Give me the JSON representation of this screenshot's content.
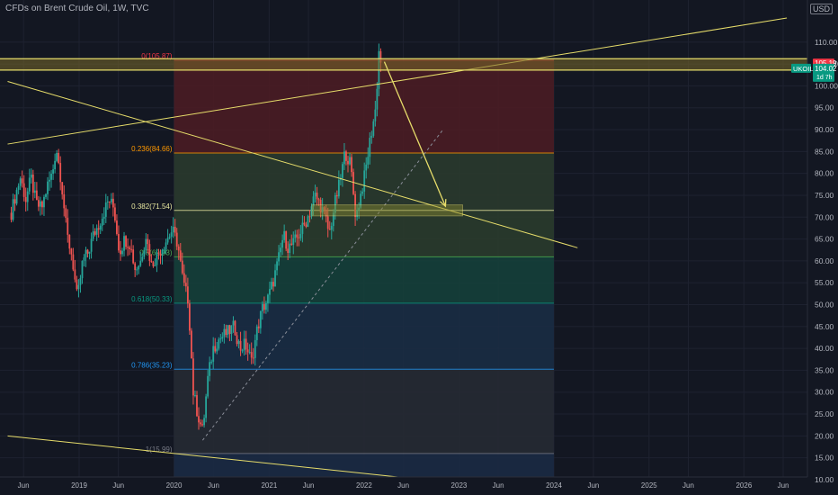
{
  "title": "CFDs on Brent Crude Oil, 1W, TVC",
  "currency": "USD",
  "chart_data": {
    "type": "candlestick",
    "symbol": "UKOIL",
    "interval": "1W",
    "source": "TVC",
    "ylim": [
      8,
      116
    ],
    "x_range": [
      "2018-04",
      "2026-11"
    ],
    "y_ticks": [
      "10.00",
      "15.00",
      "20.00",
      "25.00",
      "30.00",
      "35.00",
      "40.00",
      "45.00",
      "50.00",
      "55.00",
      "60.00",
      "65.00",
      "70.00",
      "75.00",
      "80.00",
      "85.00",
      "90.00",
      "95.00",
      "100.00",
      "105.00",
      "110.00"
    ],
    "x_ticks": [
      {
        "label": "Jun",
        "date": "2018-06"
      },
      {
        "label": "2019",
        "date": "2019-01"
      },
      {
        "label": "Jun",
        "date": "2019-06"
      },
      {
        "label": "2020",
        "date": "2020-01"
      },
      {
        "label": "Jun",
        "date": "2020-06"
      },
      {
        "label": "2021",
        "date": "2021-01"
      },
      {
        "label": "Jun",
        "date": "2021-06"
      },
      {
        "label": "2022",
        "date": "2022-01"
      },
      {
        "label": "Jun",
        "date": "2022-06"
      },
      {
        "label": "2023",
        "date": "2023-01"
      },
      {
        "label": "Jun",
        "date": "2023-06"
      },
      {
        "label": "2024",
        "date": "2024-01"
      },
      {
        "label": "Jun",
        "date": "2024-06"
      },
      {
        "label": "2025",
        "date": "2025-01"
      },
      {
        "label": "Jun",
        "date": "2025-06"
      },
      {
        "label": "2026",
        "date": "2026-01"
      },
      {
        "label": "Jun",
        "date": "2026-06"
      }
    ],
    "price_series": [
      [
        "2018-04-15",
        71
      ],
      [
        "2018-05-01",
        75
      ],
      [
        "2018-05-20",
        79
      ],
      [
        "2018-06-10",
        74
      ],
      [
        "2018-06-30",
        79
      ],
      [
        "2018-07-20",
        73
      ],
      [
        "2018-08-10",
        72
      ],
      [
        "2018-08-31",
        77
      ],
      [
        "2018-09-20",
        80
      ],
      [
        "2018-10-05",
        86
      ],
      [
        "2018-10-25",
        78
      ],
      [
        "2018-11-15",
        66
      ],
      [
        "2018-12-05",
        61
      ],
      [
        "2018-12-25",
        51
      ],
      [
        "2019-01-15",
        60
      ],
      [
        "2019-02-05",
        62
      ],
      [
        "2019-02-25",
        66
      ],
      [
        "2019-03-15",
        68
      ],
      [
        "2019-04-05",
        71
      ],
      [
        "2019-04-25",
        74
      ],
      [
        "2019-05-15",
        72
      ],
      [
        "2019-06-05",
        62
      ],
      [
        "2019-06-25",
        65
      ],
      [
        "2019-07-15",
        64
      ],
      [
        "2019-08-05",
        58
      ],
      [
        "2019-08-25",
        60
      ],
      [
        "2019-09-15",
        66
      ],
      [
        "2019-10-05",
        59
      ],
      [
        "2019-10-25",
        61
      ],
      [
        "2019-11-15",
        63
      ],
      [
        "2019-12-05",
        65
      ],
      [
        "2019-12-25",
        67
      ],
      [
        "2020-01-15",
        64
      ],
      [
        "2020-02-05",
        55
      ],
      [
        "2020-02-25",
        51
      ],
      [
        "2020-03-15",
        30
      ],
      [
        "2020-04-01",
        25
      ],
      [
        "2020-04-20",
        21
      ],
      [
        "2020-05-10",
        33
      ],
      [
        "2020-05-30",
        40
      ],
      [
        "2020-06-20",
        42
      ],
      [
        "2020-07-10",
        43
      ],
      [
        "2020-08-01",
        44
      ],
      [
        "2020-08-20",
        45
      ],
      [
        "2020-09-10",
        40
      ],
      [
        "2020-10-01",
        41
      ],
      [
        "2020-10-25",
        37
      ],
      [
        "2020-11-15",
        44
      ],
      [
        "2020-12-05",
        49
      ],
      [
        "2020-12-25",
        51
      ],
      [
        "2021-01-15",
        55
      ],
      [
        "2021-02-05",
        60
      ],
      [
        "2021-02-25",
        66
      ],
      [
        "2021-03-15",
        63
      ],
      [
        "2021-04-05",
        64
      ],
      [
        "2021-04-25",
        66
      ],
      [
        "2021-05-15",
        68
      ],
      [
        "2021-06-05",
        71
      ],
      [
        "2021-06-25",
        75
      ],
      [
        "2021-07-15",
        73
      ],
      [
        "2021-08-05",
        70
      ],
      [
        "2021-08-20",
        66
      ],
      [
        "2021-09-10",
        73
      ],
      [
        "2021-09-30",
        78
      ],
      [
        "2021-10-20",
        85
      ],
      [
        "2021-11-10",
        82
      ],
      [
        "2021-11-30",
        70
      ],
      [
        "2021-12-15",
        74
      ],
      [
        "2022-01-05",
        80
      ],
      [
        "2022-01-25",
        88
      ],
      [
        "2022-02-15",
        95
      ],
      [
        "2022-03-01",
        110
      ],
      [
        "2022-03-08",
        104
      ]
    ],
    "fibonacci": {
      "anchor_high": 105.87,
      "anchor_low": 15.99,
      "levels": [
        {
          "ratio": "0",
          "label": "0(105.87)",
          "price": 105.87,
          "color": "#f23645"
        },
        {
          "ratio": "0.236",
          "label": "0.236(84.66)",
          "price": 84.66,
          "color": "#ff9800"
        },
        {
          "ratio": "0.382",
          "label": "0.382(71.54)",
          "price": 71.54,
          "color": "#e8e8a0"
        },
        {
          "ratio": "0.5",
          "label": "0.5(60.93)",
          "price": 60.93,
          "color": "#4caf50"
        },
        {
          "ratio": "0.618",
          "label": "0.618(50.33)",
          "price": 50.33,
          "color": "#089981"
        },
        {
          "ratio": "0.786",
          "label": "0.786(35.23)",
          "price": 35.23,
          "color": "#2196f3"
        },
        {
          "ratio": "1",
          "label": "1(15.99)",
          "price": 15.99,
          "color": "#787b86"
        }
      ],
      "date_start": "2020-01-01",
      "date_end": "2024-01-01"
    },
    "resistance_band": {
      "top": 106.2,
      "bottom": 103.6
    },
    "target_zone": {
      "date_start": "2021-06-15",
      "date_end": "2023-01-15",
      "top": 72.8,
      "bottom": 70.3
    },
    "projection_arrow": {
      "from_date": "2022-03-20",
      "from_price": 105.5,
      "to_date": "2022-11-10",
      "to_price": 72.5
    },
    "trendlines": [
      {
        "from_date": "2018-04-01",
        "from_price": 86.7,
        "to_date": "2026-06-15",
        "to_price": 115.5
      },
      {
        "from_date": "2018-04-01",
        "from_price": 101,
        "to_date": "2024-04-01",
        "to_price": 63
      },
      {
        "from_date": "2018-04-01",
        "from_price": 20,
        "to_date": "2023-06-01",
        "to_price": 8.2
      }
    ],
    "dotted_line": {
      "from_date": "2020-04-20",
      "from_price": 19,
      "to_date": "2022-11-01",
      "to_price": 90
    },
    "last_price": {
      "symbol": "UKOIL",
      "price": "104.02",
      "countdown": "1d 7h"
    },
    "marked_price": "105.19",
    "marked_price_value": 105.19,
    "last_price_value": 104.02
  }
}
